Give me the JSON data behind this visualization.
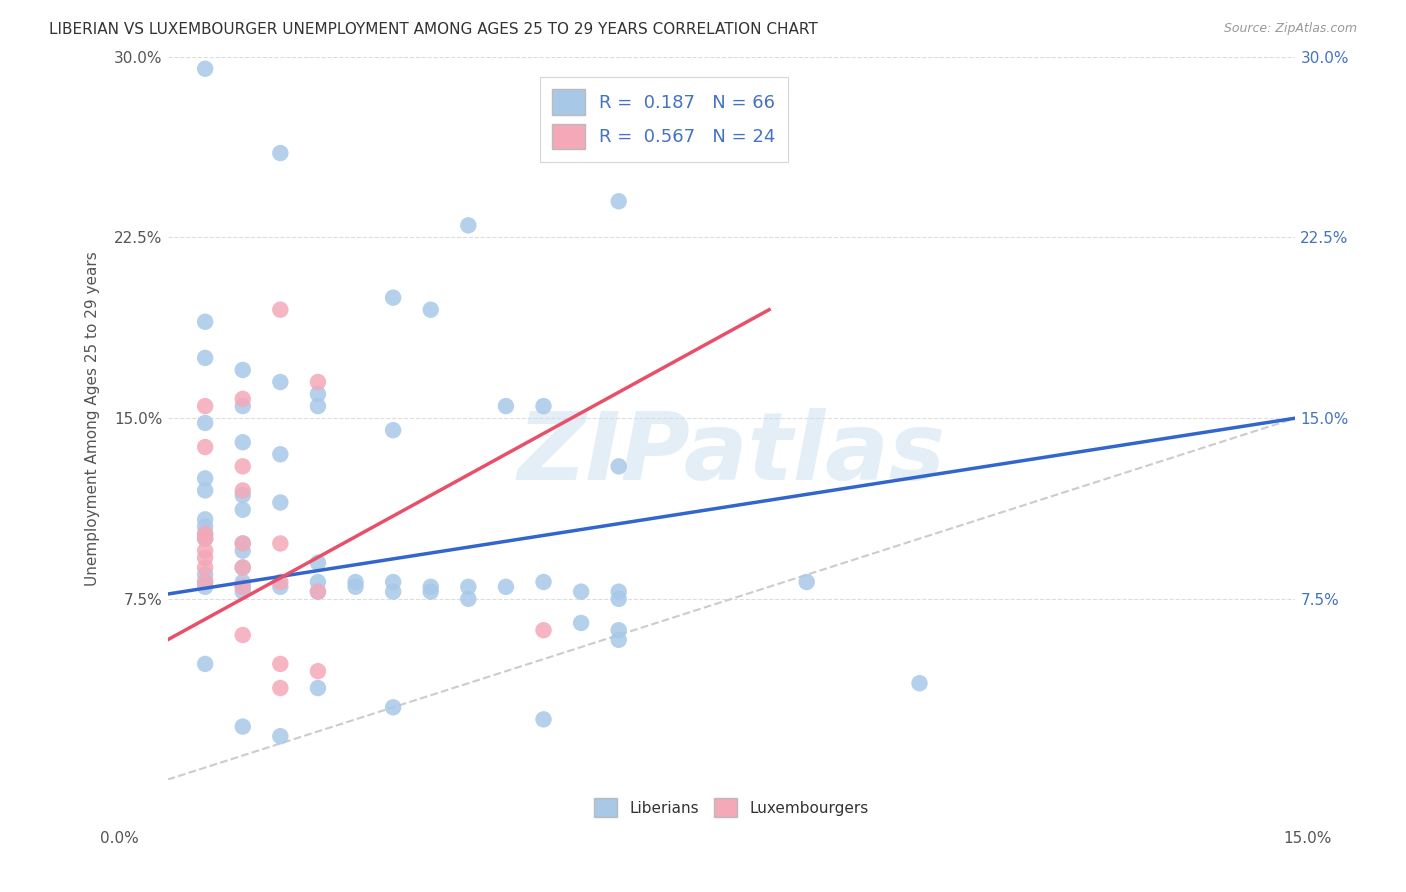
{
  "title": "LIBERIAN VS LUXEMBOURGER UNEMPLOYMENT AMONG AGES 25 TO 29 YEARS CORRELATION CHART",
  "source": "Source: ZipAtlas.com",
  "ylabel": "Unemployment Among Ages 25 to 29 years",
  "xlim": [
    0,
    0.15
  ],
  "ylim": [
    0,
    0.3
  ],
  "xticks": [
    0.0,
    0.05,
    0.1,
    0.15
  ],
  "xticklabels": [
    "0.0%",
    "",
    "",
    "15.0%"
  ],
  "yticks": [
    0.0,
    0.075,
    0.15,
    0.225,
    0.3
  ],
  "yticklabels_left": [
    "",
    "7.5%",
    "15.0%",
    "22.5%",
    "30.0%"
  ],
  "yticklabels_right": [
    "",
    "7.5%",
    "15.0%",
    "22.5%",
    "30.0%"
  ],
  "legend_labels": [
    "Liberians",
    "Luxembourgers"
  ],
  "legend_R": [
    "R =  0.187   N = 66",
    "R =  0.567   N = 24"
  ],
  "blue_color": "#a8c8e8",
  "pink_color": "#f4a8b8",
  "blue_line_color": "#3366cc",
  "pink_line_color": "#e8506a",
  "diagonal_color": "#cccccc",
  "watermark": "ZIPatlas",
  "blue_dots": [
    [
      0.005,
      0.295
    ],
    [
      0.015,
      0.26
    ],
    [
      0.04,
      0.23
    ],
    [
      0.06,
      0.24
    ],
    [
      0.03,
      0.2
    ],
    [
      0.035,
      0.195
    ],
    [
      0.005,
      0.19
    ],
    [
      0.005,
      0.175
    ],
    [
      0.01,
      0.17
    ],
    [
      0.015,
      0.165
    ],
    [
      0.02,
      0.16
    ],
    [
      0.01,
      0.155
    ],
    [
      0.02,
      0.155
    ],
    [
      0.045,
      0.155
    ],
    [
      0.005,
      0.148
    ],
    [
      0.03,
      0.145
    ],
    [
      0.05,
      0.155
    ],
    [
      0.01,
      0.14
    ],
    [
      0.015,
      0.135
    ],
    [
      0.06,
      0.13
    ],
    [
      0.005,
      0.125
    ],
    [
      0.005,
      0.12
    ],
    [
      0.01,
      0.118
    ],
    [
      0.015,
      0.115
    ],
    [
      0.01,
      0.112
    ],
    [
      0.005,
      0.108
    ],
    [
      0.005,
      0.105
    ],
    [
      0.005,
      0.102
    ],
    [
      0.005,
      0.1
    ],
    [
      0.01,
      0.098
    ],
    [
      0.01,
      0.095
    ],
    [
      0.02,
      0.09
    ],
    [
      0.01,
      0.088
    ],
    [
      0.005,
      0.085
    ],
    [
      0.005,
      0.082
    ],
    [
      0.005,
      0.08
    ],
    [
      0.01,
      0.082
    ],
    [
      0.01,
      0.08
    ],
    [
      0.01,
      0.078
    ],
    [
      0.015,
      0.08
    ],
    [
      0.02,
      0.082
    ],
    [
      0.02,
      0.078
    ],
    [
      0.025,
      0.082
    ],
    [
      0.025,
      0.08
    ],
    [
      0.03,
      0.082
    ],
    [
      0.03,
      0.078
    ],
    [
      0.035,
      0.08
    ],
    [
      0.035,
      0.078
    ],
    [
      0.04,
      0.08
    ],
    [
      0.04,
      0.075
    ],
    [
      0.045,
      0.08
    ],
    [
      0.05,
      0.082
    ],
    [
      0.055,
      0.078
    ],
    [
      0.06,
      0.078
    ],
    [
      0.06,
      0.075
    ],
    [
      0.055,
      0.065
    ],
    [
      0.06,
      0.062
    ],
    [
      0.06,
      0.058
    ],
    [
      0.085,
      0.082
    ],
    [
      0.1,
      0.04
    ],
    [
      0.005,
      0.048
    ],
    [
      0.02,
      0.038
    ],
    [
      0.03,
      0.03
    ],
    [
      0.05,
      0.025
    ],
    [
      0.01,
      0.022
    ],
    [
      0.015,
      0.018
    ]
  ],
  "pink_dots": [
    [
      0.005,
      0.138
    ],
    [
      0.01,
      0.12
    ],
    [
      0.005,
      0.1
    ],
    [
      0.015,
      0.195
    ],
    [
      0.02,
      0.165
    ],
    [
      0.01,
      0.158
    ],
    [
      0.005,
      0.155
    ],
    [
      0.01,
      0.13
    ],
    [
      0.005,
      0.102
    ],
    [
      0.01,
      0.098
    ],
    [
      0.015,
      0.098
    ],
    [
      0.005,
      0.095
    ],
    [
      0.005,
      0.092
    ],
    [
      0.005,
      0.088
    ],
    [
      0.01,
      0.088
    ],
    [
      0.005,
      0.082
    ],
    [
      0.01,
      0.08
    ],
    [
      0.015,
      0.082
    ],
    [
      0.02,
      0.078
    ],
    [
      0.01,
      0.06
    ],
    [
      0.015,
      0.048
    ],
    [
      0.02,
      0.045
    ],
    [
      0.015,
      0.038
    ],
    [
      0.05,
      0.062
    ]
  ],
  "blue_trendline": [
    [
      0.0,
      0.077
    ],
    [
      0.15,
      0.15
    ]
  ],
  "pink_trendline": [
    [
      0.0,
      0.058
    ],
    [
      0.08,
      0.195
    ]
  ],
  "diagonal_line": [
    [
      0.0,
      0.0
    ],
    [
      0.15,
      0.15
    ]
  ]
}
